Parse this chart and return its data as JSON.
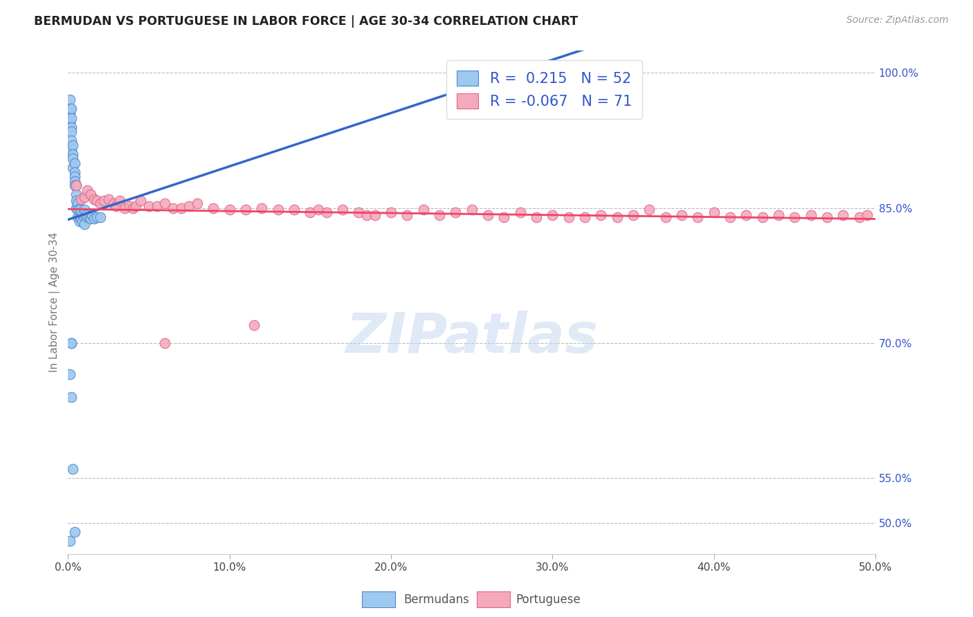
{
  "title": "BERMUDAN VS PORTUGUESE IN LABOR FORCE | AGE 30-34 CORRELATION CHART",
  "source": "Source: ZipAtlas.com",
  "ylabel": "In Labor Force | Age 30-34",
  "xlim": [
    0.0,
    0.5
  ],
  "ylim": [
    0.465,
    1.025
  ],
  "xticks": [
    0.0,
    0.1,
    0.2,
    0.3,
    0.4,
    0.5
  ],
  "xticklabels": [
    "0.0%",
    "10.0%",
    "20.0%",
    "30.0%",
    "40.0%",
    "50.0%"
  ],
  "yticks_right": [
    0.5,
    0.55,
    0.7,
    0.85,
    1.0
  ],
  "yticklabels_right": [
    "50.0%",
    "55.0%",
    "70.0%",
    "85.0%",
    "100.0%"
  ],
  "R_bermudan": 0.215,
  "N_bermudan": 52,
  "R_portuguese": -0.067,
  "N_portuguese": 71,
  "bermudan_color": "#9DC8F0",
  "portuguese_color": "#F4AABC",
  "bermudan_edge_color": "#5588CC",
  "portuguese_edge_color": "#DD6688",
  "bermudan_line_color": "#3366CC",
  "portuguese_line_color": "#EE4466",
  "watermark_color": "#C8D8F0",
  "background_color": "#FFFFFF",
  "bermudan_x": [
    0.001,
    0.001,
    0.001,
    0.001,
    0.002,
    0.002,
    0.002,
    0.002,
    0.002,
    0.002,
    0.003,
    0.003,
    0.003,
    0.003,
    0.004,
    0.004,
    0.004,
    0.004,
    0.004,
    0.005,
    0.005,
    0.005,
    0.005,
    0.006,
    0.006,
    0.006,
    0.007,
    0.007,
    0.007,
    0.008,
    0.008,
    0.009,
    0.009,
    0.01,
    0.01,
    0.01,
    0.011,
    0.012,
    0.013,
    0.014,
    0.015,
    0.016,
    0.018,
    0.02,
    0.002,
    0.003,
    0.004,
    0.001,
    0.002,
    0.002,
    0.001,
    0.28
  ],
  "bermudan_y": [
    0.97,
    0.96,
    0.955,
    0.945,
    0.96,
    0.95,
    0.94,
    0.935,
    0.925,
    0.915,
    0.92,
    0.91,
    0.905,
    0.895,
    0.9,
    0.89,
    0.885,
    0.88,
    0.875,
    0.875,
    0.865,
    0.858,
    0.85,
    0.855,
    0.848,
    0.84,
    0.848,
    0.84,
    0.835,
    0.845,
    0.838,
    0.842,
    0.835,
    0.848,
    0.84,
    0.832,
    0.842,
    0.84,
    0.84,
    0.838,
    0.842,
    0.838,
    0.84,
    0.84,
    0.64,
    0.56,
    0.49,
    0.665,
    0.7,
    0.7,
    0.48,
    1.005
  ],
  "portuguese_x": [
    0.005,
    0.008,
    0.01,
    0.012,
    0.014,
    0.016,
    0.018,
    0.02,
    0.022,
    0.025,
    0.028,
    0.03,
    0.032,
    0.035,
    0.038,
    0.04,
    0.042,
    0.045,
    0.05,
    0.055,
    0.06,
    0.065,
    0.07,
    0.075,
    0.08,
    0.09,
    0.1,
    0.11,
    0.12,
    0.13,
    0.14,
    0.15,
    0.155,
    0.16,
    0.17,
    0.18,
    0.185,
    0.19,
    0.2,
    0.21,
    0.22,
    0.23,
    0.24,
    0.25,
    0.26,
    0.27,
    0.28,
    0.29,
    0.3,
    0.31,
    0.32,
    0.33,
    0.34,
    0.35,
    0.36,
    0.37,
    0.38,
    0.39,
    0.4,
    0.41,
    0.42,
    0.43,
    0.44,
    0.45,
    0.46,
    0.47,
    0.48,
    0.49,
    0.495,
    0.06,
    0.115
  ],
  "portuguese_y": [
    0.875,
    0.86,
    0.862,
    0.87,
    0.865,
    0.86,
    0.858,
    0.855,
    0.858,
    0.86,
    0.855,
    0.852,
    0.858,
    0.85,
    0.852,
    0.85,
    0.852,
    0.858,
    0.852,
    0.852,
    0.855,
    0.85,
    0.85,
    0.852,
    0.855,
    0.85,
    0.848,
    0.848,
    0.85,
    0.848,
    0.848,
    0.845,
    0.848,
    0.845,
    0.848,
    0.845,
    0.842,
    0.842,
    0.845,
    0.842,
    0.848,
    0.842,
    0.845,
    0.848,
    0.842,
    0.84,
    0.845,
    0.84,
    0.842,
    0.84,
    0.84,
    0.842,
    0.84,
    0.842,
    0.848,
    0.84,
    0.842,
    0.84,
    0.845,
    0.84,
    0.842,
    0.84,
    0.842,
    0.84,
    0.842,
    0.84,
    0.842,
    0.84,
    0.842,
    0.7,
    0.72
  ]
}
